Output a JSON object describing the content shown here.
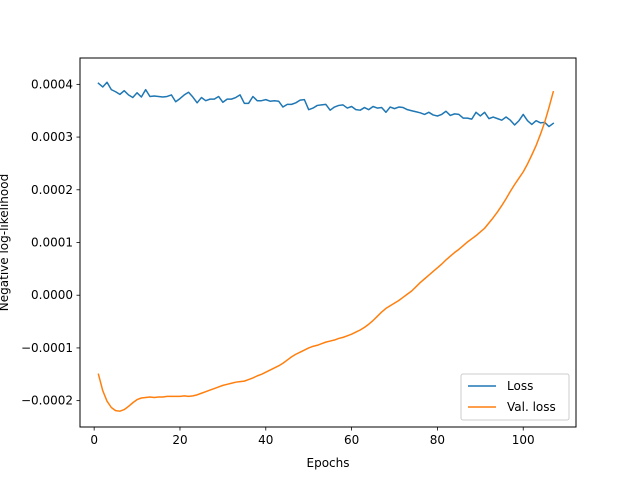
{
  "chart_data": {
    "type": "line",
    "xlabel": "Epochs",
    "ylabel": "Negative log-likelihood",
    "xlim": [
      -3.3,
      112.3
    ],
    "ylim": [
      -0.00025,
      0.00045
    ],
    "xticks": [
      0,
      20,
      40,
      60,
      80,
      100
    ],
    "xtick_labels": [
      "0",
      "20",
      "40",
      "60",
      "80",
      "100"
    ],
    "yticks": [
      -0.0002,
      -0.0001,
      0.0,
      0.0001,
      0.0002,
      0.0003,
      0.0004
    ],
    "ytick_labels": [
      "−0.0002",
      "−0.0001",
      "0.0000",
      "0.0001",
      "0.0002",
      "0.0003",
      "0.0004"
    ],
    "grid": false,
    "legend_position": "lower-right",
    "series": [
      {
        "name": "Loss",
        "color": "#1f77b4",
        "x": [
          1,
          2,
          3,
          4,
          5,
          6,
          7,
          8,
          9,
          10,
          11,
          12,
          13,
          14,
          15,
          16,
          17,
          18,
          19,
          20,
          21,
          22,
          23,
          24,
          25,
          26,
          27,
          28,
          29,
          30,
          31,
          32,
          33,
          34,
          35,
          36,
          37,
          38,
          39,
          40,
          41,
          42,
          43,
          44,
          45,
          46,
          47,
          48,
          49,
          50,
          51,
          52,
          53,
          54,
          55,
          56,
          57,
          58,
          59,
          60,
          61,
          62,
          63,
          64,
          65,
          66,
          67,
          68,
          69,
          70,
          71,
          72,
          73,
          74,
          75,
          76,
          77,
          78,
          79,
          80,
          81,
          82,
          83,
          84,
          85,
          86,
          87,
          88,
          89,
          90,
          91,
          92,
          93,
          94,
          95,
          96,
          97,
          98,
          99,
          100,
          101,
          102,
          103,
          104,
          105,
          106,
          107
        ],
        "y": [
          0.000402,
          0.000395,
          0.000404,
          0.00039,
          0.000386,
          0.000381,
          0.000388,
          0.00038,
          0.000375,
          0.000384,
          0.000376,
          0.00039,
          0.000377,
          0.000378,
          0.000377,
          0.000376,
          0.000377,
          0.00038,
          0.000367,
          0.000373,
          0.00038,
          0.000385,
          0.000376,
          0.000365,
          0.000375,
          0.000369,
          0.000372,
          0.000372,
          0.000377,
          0.000366,
          0.000372,
          0.000372,
          0.000375,
          0.00038,
          0.000364,
          0.000364,
          0.000377,
          0.000369,
          0.000369,
          0.000371,
          0.000368,
          0.000369,
          0.000368,
          0.000357,
          0.000362,
          0.000362,
          0.000365,
          0.00037,
          0.000371,
          0.000352,
          0.000355,
          0.00036,
          0.000361,
          0.000362,
          0.000351,
          0.000357,
          0.00036,
          0.000361,
          0.000355,
          0.000358,
          0.000352,
          0.000351,
          0.000356,
          0.000352,
          0.000358,
          0.000355,
          0.000356,
          0.000347,
          0.000357,
          0.000354,
          0.000357,
          0.000356,
          0.000352,
          0.00035,
          0.000348,
          0.000346,
          0.000343,
          0.000347,
          0.000342,
          0.00034,
          0.000343,
          0.000349,
          0.000341,
          0.000344,
          0.000343,
          0.000336,
          0.000336,
          0.000334,
          0.000347,
          0.00034,
          0.000347,
          0.000335,
          0.000338,
          0.000335,
          0.000332,
          0.000338,
          0.000332,
          0.000323,
          0.000331,
          0.000343,
          0.000331,
          0.000324,
          0.000331,
          0.000327,
          0.000328,
          0.00032,
          0.000326
        ]
      },
      {
        "name": "Val. loss",
        "color": "#ff7f0e",
        "x": [
          1,
          2,
          3,
          4,
          5,
          6,
          7,
          8,
          9,
          10,
          11,
          12,
          13,
          14,
          15,
          16,
          17,
          18,
          19,
          20,
          21,
          22,
          23,
          24,
          25,
          26,
          27,
          28,
          29,
          30,
          31,
          32,
          33,
          34,
          35,
          36,
          37,
          38,
          39,
          40,
          41,
          42,
          43,
          44,
          45,
          46,
          47,
          48,
          49,
          50,
          51,
          52,
          53,
          54,
          55,
          56,
          57,
          58,
          59,
          60,
          61,
          62,
          63,
          64,
          65,
          66,
          67,
          68,
          69,
          70,
          71,
          72,
          73,
          74,
          75,
          76,
          77,
          78,
          79,
          80,
          81,
          82,
          83,
          84,
          85,
          86,
          87,
          88,
          89,
          90,
          91,
          92,
          93,
          94,
          95,
          96,
          97,
          98,
          99,
          100,
          101,
          102,
          103,
          104,
          105,
          106,
          107
        ],
        "y": [
          -0.00015,
          -0.000181,
          -0.000201,
          -0.000213,
          -0.000219,
          -0.00022,
          -0.000217,
          -0.000211,
          -0.000204,
          -0.000198,
          -0.000195,
          -0.000194,
          -0.000193,
          -0.000194,
          -0.000193,
          -0.000193,
          -0.000192,
          -0.000192,
          -0.000192,
          -0.000192,
          -0.000191,
          -0.000192,
          -0.000191,
          -0.000189,
          -0.000186,
          -0.000183,
          -0.00018,
          -0.000177,
          -0.000174,
          -0.000171,
          -0.000169,
          -0.000167,
          -0.000165,
          -0.000164,
          -0.000163,
          -0.00016,
          -0.000157,
          -0.000153,
          -0.00015,
          -0.000146,
          -0.000142,
          -0.000138,
          -0.000134,
          -0.000129,
          -0.000123,
          -0.000117,
          -0.000112,
          -0.000108,
          -0.000104,
          -0.0001,
          -9.7e-05,
          -9.5e-05,
          -9.2e-05,
          -8.9e-05,
          -8.7e-05,
          -8.5e-05,
          -8.2e-05,
          -8e-05,
          -7.7e-05,
          -7.4e-05,
          -7e-05,
          -6.6e-05,
          -6.1e-05,
          -5.5e-05,
          -4.8e-05,
          -4e-05,
          -3.2e-05,
          -2.5e-05,
          -2e-05,
          -1.5e-05,
          -1e-05,
          -4e-06,
          2e-06,
          8e-06,
          1.6e-05,
          2.4e-05,
          3.1e-05,
          3.8e-05,
          4.5e-05,
          5.2e-05,
          5.9e-05,
          6.7e-05,
          7.4e-05,
          8.1e-05,
          8.7e-05,
          9.4e-05,
          0.000101,
          0.000107,
          0.000113,
          0.00012,
          0.000127,
          0.000137,
          0.000147,
          0.000158,
          0.00017,
          0.000183,
          0.000197,
          0.00021,
          0.000222,
          0.000234,
          0.000249,
          0.000266,
          0.000284,
          0.000305,
          0.000328,
          0.000356,
          0.000386
        ]
      }
    ]
  }
}
